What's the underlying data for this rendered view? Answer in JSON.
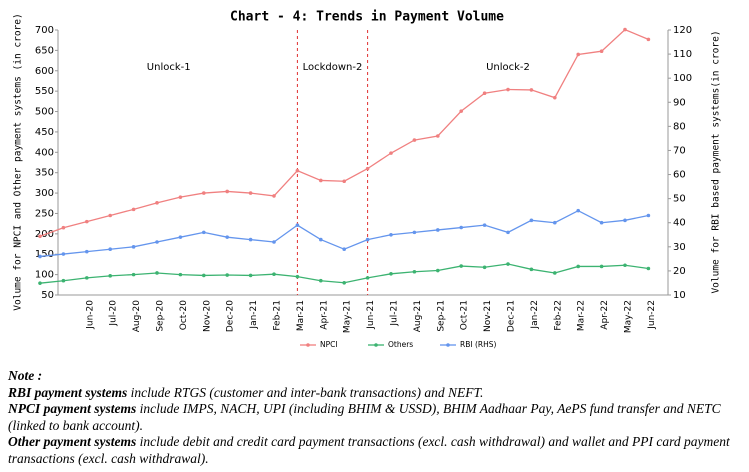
{
  "chart_data": {
    "type": "line",
    "title": "Chart - 4: Trends in Payment Volume",
    "y_label": "Volume for NPCI and Other payment systems (in crore)",
    "y2_label": "Volume for RBI based payment systems(in crore)",
    "categories": [
      null,
      null,
      "Jun-20",
      "Jul-20",
      "Aug-20",
      "Sep-20",
      "Oct-20",
      "Nov-20",
      "Dec-20",
      "Jan-21",
      "Feb-21",
      "Mar-21",
      "Apr-21",
      "May-21",
      "Jun-21",
      "Jul-21",
      "Aug-21",
      "Sep-21",
      "Oct-21",
      "Nov-21",
      "Dec-21",
      "Jan-22",
      "Feb-22",
      "Mar-22",
      "Apr-22",
      "May-22",
      "Jun-22"
    ],
    "series": [
      {
        "name": "NPCI",
        "color": "#f08080",
        "values": [
          194,
          215,
          230,
          245,
          260,
          276,
          290,
          300,
          304,
          300,
          293,
          355,
          331,
          329,
          360,
          398,
          430,
          440,
          501,
          545,
          554,
          553,
          534,
          640,
          648,
          701,
          677
        ]
      },
      {
        "name": "Others",
        "color": "#3cb371",
        "values": [
          79,
          85,
          92,
          97,
          100,
          104,
          100,
          98,
          99,
          98,
          101,
          95,
          85,
          80,
          92,
          102,
          107,
          110,
          121,
          118,
          126,
          113,
          104,
          120,
          120,
          123,
          115
        ]
      },
      {
        "name": "RBI (RHS)",
        "color": "#6495ed",
        "axis": "y2",
        "values": [
          26,
          27,
          28,
          29,
          30,
          32,
          34,
          36,
          34,
          33,
          32,
          39,
          33,
          29,
          33,
          35,
          36,
          37,
          38,
          39,
          36,
          41,
          40,
          45,
          40,
          41,
          43
        ]
      }
    ],
    "ylim": [
      50,
      700
    ],
    "yticks": [
      50,
      100,
      150,
      200,
      250,
      300,
      350,
      400,
      450,
      500,
      550,
      600,
      650,
      700
    ],
    "y2lim": [
      10,
      120
    ],
    "y2ticks": [
      10,
      20,
      30,
      40,
      50,
      60,
      70,
      80,
      90,
      100,
      110,
      120
    ],
    "annotations": [
      {
        "text": "Unlock-1",
        "color": "#f0a030"
      },
      {
        "text": "Lockdown-2",
        "color": "#e03030"
      },
      {
        "text": "Unlock-2",
        "color": "#2e8b2e"
      }
    ],
    "vlines": [
      "Mar-21",
      "Jun-21"
    ],
    "legend": "bottom"
  },
  "notes": {
    "heading": "Note :",
    "items": [
      {
        "lead": "RBI payment systems",
        "text": " include RTGS (customer and inter-bank transactions) and NEFT."
      },
      {
        "lead": "NPCI payment systems",
        "text": " include IMPS, NACH, UPI (including BHIM & USSD), BHIM Aadhaar Pay, AePS fund transfer and NETC (linked to bank account)."
      },
      {
        "lead": "Other payment systems",
        "text": " include debit and credit card payment transactions (excl. cash withdrawal) and wallet and PPI card payment transactions (excl. cash withdrawal)."
      }
    ]
  }
}
